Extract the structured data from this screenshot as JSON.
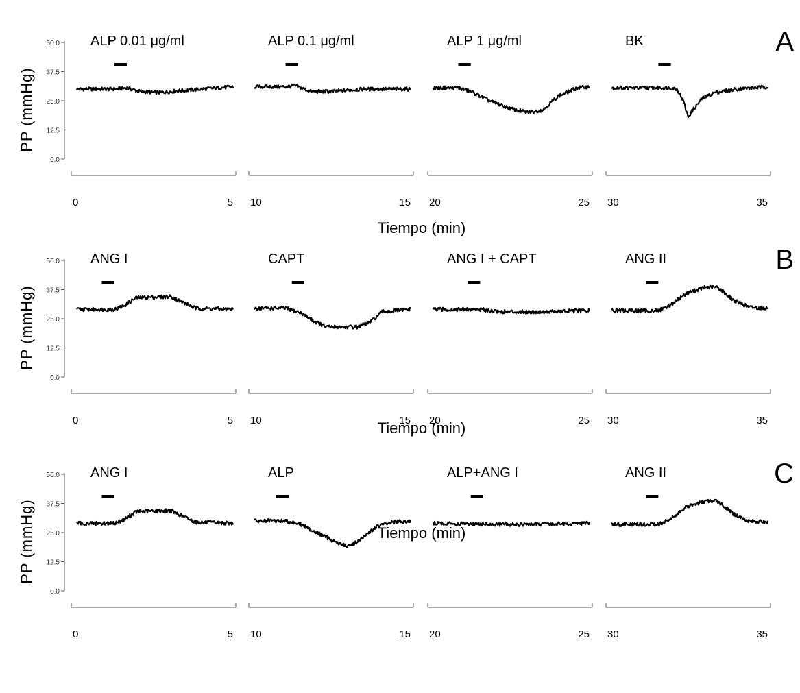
{
  "chart_data": [
    {
      "type": "line",
      "panel_letter": "A",
      "ylabel": "PP (mmHg)",
      "xlabel": "Tiempo (min)",
      "ylim": [
        0,
        50
      ],
      "yticks": [
        "50.0",
        "37.5",
        "25.0",
        "12.5",
        "0.0"
      ],
      "segments": [
        {
          "label": "ALP 0.01 μg/ml",
          "xtick_left": "0",
          "xtick_right": "5",
          "xlim": [
            0,
            5
          ],
          "stim": [
            1.2,
            1.6
          ],
          "x": [
            0,
            1.2,
            1.6,
            2.0,
            2.6,
            3.5,
            4.5,
            5
          ],
          "y": [
            30,
            30,
            30.5,
            29,
            28.5,
            29.5,
            30.5,
            31
          ]
        },
        {
          "label": "ALP 0.1 μg/ml",
          "xtick_left": "10",
          "xtick_right": "15",
          "xlim": [
            10,
            15
          ],
          "stim": [
            11.0,
            11.4
          ],
          "x": [
            10,
            11.0,
            11.3,
            11.8,
            12.5,
            13.5,
            15
          ],
          "y": [
            31,
            31,
            31.5,
            29,
            29,
            30,
            30
          ]
        },
        {
          "label": "ALP 1 μg/ml",
          "xtick_left": "20",
          "xtick_right": "25",
          "xlim": [
            20,
            25
          ],
          "stim": [
            20.8,
            21.2
          ],
          "x": [
            20,
            20.8,
            21.2,
            21.8,
            22.5,
            23.0,
            23.5,
            24.0,
            24.6,
            25
          ],
          "y": [
            30.5,
            30.5,
            29,
            25,
            21.5,
            20,
            21,
            27,
            30.5,
            31
          ]
        },
        {
          "label": "BK",
          "xtick_left": "30",
          "xtick_right": "35",
          "xlim": [
            30,
            35
          ],
          "stim": [
            31.5,
            31.9
          ],
          "x": [
            30,
            31.5,
            31.9,
            32.1,
            32.3,
            32.45,
            32.6,
            32.9,
            33.3,
            34.0,
            35
          ],
          "y": [
            30.5,
            30.5,
            30.5,
            30,
            25,
            18,
            21,
            26,
            28.5,
            30,
            31
          ]
        }
      ]
    },
    {
      "type": "line",
      "panel_letter": "B",
      "ylabel": "PP (mmHg)",
      "xlabel": "Tiempo (min)",
      "ylim": [
        0,
        50
      ],
      "yticks": [
        "50.0",
        "37.5",
        "25.0",
        "12.5",
        "0.0"
      ],
      "segments": [
        {
          "label": "ANG I",
          "xtick_left": "0",
          "xtick_right": "5",
          "xlim": [
            0,
            5
          ],
          "stim": [
            0.8,
            1.2
          ],
          "x": [
            0,
            1.2,
            1.5,
            1.9,
            3.0,
            3.4,
            3.8,
            5
          ],
          "y": [
            29,
            29,
            30.5,
            34,
            34.5,
            32,
            29.5,
            29
          ]
        },
        {
          "label": "CAPT",
          "xtick_left": "10",
          "xtick_right": "15",
          "xlim": [
            10,
            15
          ],
          "stim": [
            11.2,
            11.6
          ],
          "x": [
            10,
            11.0,
            11.5,
            11.9,
            12.3,
            13.3,
            13.7,
            14.1,
            15
          ],
          "y": [
            29.5,
            29.5,
            27.5,
            24,
            21.5,
            21.5,
            23.5,
            28,
            29
          ]
        },
        {
          "label": "ANG I + CAPT",
          "xtick_left": "20",
          "xtick_right": "25",
          "xlim": [
            20,
            25
          ],
          "stim": [
            21.1,
            21.5
          ],
          "x": [
            20,
            21.5,
            22.2,
            23.5,
            25
          ],
          "y": [
            29,
            29,
            28,
            28,
            28.5
          ]
        },
        {
          "label": "ANG II",
          "xtick_left": "30",
          "xtick_right": "35",
          "xlim": [
            30,
            35
          ],
          "stim": [
            31.1,
            31.5
          ],
          "x": [
            30,
            31.5,
            31.9,
            32.4,
            33.0,
            33.4,
            33.9,
            34.4,
            35
          ],
          "y": [
            28.5,
            28.5,
            31,
            36,
            38.5,
            38.5,
            33,
            30,
            29.5
          ]
        }
      ]
    },
    {
      "type": "line",
      "panel_letter": "C",
      "ylabel": "PP (mmHg)",
      "xlabel": "Tiempo (min)",
      "ylim": [
        0,
        50
      ],
      "yticks": [
        "50.0",
        "37.5",
        "25.0",
        "12.5",
        "0.0"
      ],
      "segments": [
        {
          "label": "ANG I",
          "xtick_left": "0",
          "xtick_right": "5",
          "xlim": [
            0,
            5
          ],
          "stim": [
            0.8,
            1.2
          ],
          "x": [
            0,
            1.2,
            1.5,
            1.9,
            3.0,
            3.4,
            3.8,
            5
          ],
          "y": [
            29,
            29,
            30.5,
            34,
            34.5,
            32,
            29.5,
            29
          ]
        },
        {
          "label": "ALP",
          "xtick_left": "10",
          "xtick_right": "15",
          "xlim": [
            10,
            15
          ],
          "stim": [
            10.7,
            11.1
          ],
          "x": [
            10,
            11.0,
            11.4,
            12.0,
            12.6,
            13.0,
            13.4,
            13.9,
            14.4,
            15
          ],
          "y": [
            30,
            30,
            29,
            25,
            21,
            19,
            22,
            27.5,
            29.5,
            30
          ]
        },
        {
          "label": "ALP+ANG I",
          "xtick_left": "20",
          "xtick_right": "25",
          "xlim": [
            20,
            25
          ],
          "stim": [
            21.2,
            21.6
          ],
          "x": [
            20,
            22.0,
            23.0,
            25
          ],
          "y": [
            29,
            28.5,
            28.5,
            29
          ]
        },
        {
          "label": "ANG II",
          "xtick_left": "30",
          "xtick_right": "35",
          "xlim": [
            30,
            35
          ],
          "stim": [
            31.1,
            31.5
          ],
          "x": [
            30,
            31.5,
            31.9,
            32.4,
            33.0,
            33.4,
            33.9,
            34.4,
            35
          ],
          "y": [
            28.5,
            28.5,
            31,
            36,
            38.5,
            38.5,
            33,
            30,
            29.5
          ]
        }
      ]
    }
  ]
}
